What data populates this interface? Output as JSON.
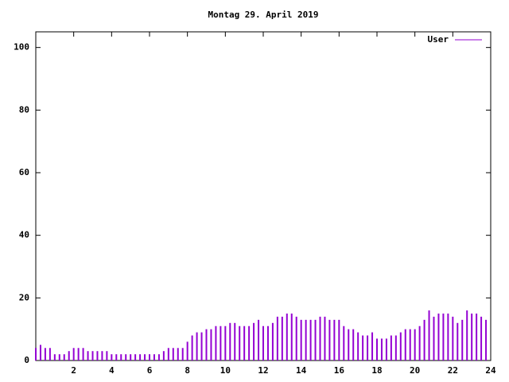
{
  "chart_data": {
    "type": "impulse",
    "title": "Montag 29. April 2019",
    "x": [
      0,
      0.25,
      0.5,
      0.75,
      1,
      1.25,
      1.5,
      1.75,
      2,
      2.25,
      2.5,
      2.75,
      3,
      3.25,
      3.5,
      3.75,
      4,
      4.25,
      4.5,
      4.75,
      5,
      5.25,
      5.5,
      5.75,
      6,
      6.25,
      6.5,
      6.75,
      7,
      7.25,
      7.5,
      7.75,
      8,
      8.25,
      8.5,
      8.75,
      9,
      9.25,
      9.5,
      9.75,
      10,
      10.25,
      10.5,
      10.75,
      11,
      11.25,
      11.5,
      11.75,
      12,
      12.25,
      12.5,
      12.75,
      13,
      13.25,
      13.5,
      13.75,
      14,
      14.25,
      14.5,
      14.75,
      15,
      15.25,
      15.5,
      15.75,
      16,
      16.25,
      16.5,
      16.75,
      17,
      17.25,
      17.5,
      17.75,
      18,
      18.25,
      18.5,
      18.75,
      19,
      19.25,
      19.5,
      19.75,
      20,
      20.25,
      20.5,
      20.75,
      21,
      21.25,
      21.5,
      21.75,
      22,
      22.25,
      22.5,
      22.75,
      23,
      23.25,
      23.5,
      23.75
    ],
    "series": [
      {
        "name": "User",
        "color": "#9400d3",
        "values": [
          4,
          5,
          4,
          4,
          2,
          2,
          2,
          3,
          4,
          4,
          4,
          3,
          3,
          3,
          3,
          3,
          2,
          2,
          2,
          2,
          2,
          2,
          2,
          2,
          2,
          2,
          2,
          3,
          4,
          4,
          4,
          4,
          6,
          8,
          9,
          9,
          10,
          10,
          11,
          11,
          11,
          12,
          12,
          11,
          11,
          11,
          12,
          13,
          11,
          11,
          12,
          14,
          14,
          15,
          15,
          14,
          13,
          13,
          13,
          13,
          14,
          14,
          13,
          13,
          13,
          11,
          10,
          10,
          9,
          8,
          8,
          9,
          7,
          7,
          7,
          8,
          8,
          9,
          10,
          10,
          10,
          11,
          13,
          16,
          14,
          15,
          15,
          15,
          14,
          12,
          13,
          16,
          15,
          15,
          14,
          13
        ]
      }
    ],
    "xlim": [
      0,
      24
    ],
    "ylim": [
      0,
      105
    ],
    "xticks": [
      2,
      4,
      6,
      8,
      10,
      12,
      14,
      16,
      18,
      20,
      22,
      24
    ],
    "yticks": [
      0,
      20,
      40,
      60,
      80,
      100
    ],
    "legend": "top-right"
  }
}
